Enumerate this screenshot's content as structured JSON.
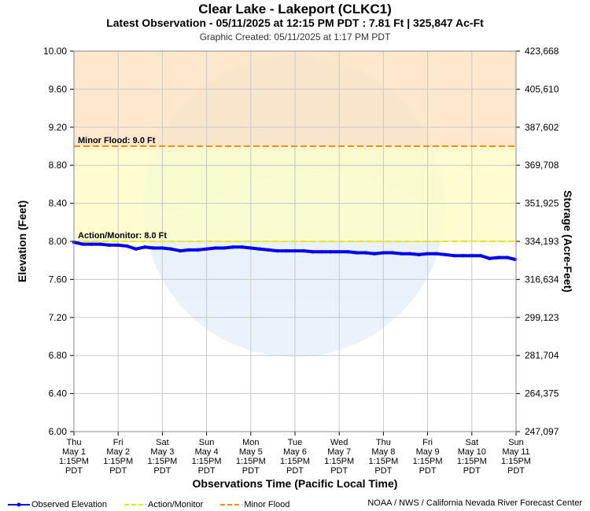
{
  "chart_data": {
    "type": "line",
    "title": "Clear Lake - Lakeport (CLKC1)",
    "subtitle": "Latest Observation - 05/11/2025 at 12:15 PM PDT : 7.81 Ft | 325,847 Ac-Ft",
    "created": "Graphic Created: 05/11/2025 at 1:17 PM PDT",
    "xlabel": "Observations Time (Pacific Local Time)",
    "ylabel": "Elevation (Feet)",
    "y2label": "Storage (Acre-Feet)",
    "ylim": [
      6.0,
      10.0
    ],
    "xlim": [
      0,
      10
    ],
    "y_ticks": [
      "6.00",
      "6.40",
      "6.80",
      "7.20",
      "7.60",
      "8.00",
      "8.40",
      "8.80",
      "9.20",
      "9.60",
      "10.00"
    ],
    "y2_ticks": [
      "247,097",
      "264,375",
      "281,704",
      "299,123",
      "316,634",
      "334,193",
      "351,925",
      "369,708",
      "387,602",
      "405,610",
      "423,668"
    ],
    "x_ticks": [
      [
        "Thu",
        "May 1",
        "1:15PM",
        "PDT"
      ],
      [
        "Fri",
        "May 2",
        "1:15PM",
        "PDT"
      ],
      [
        "Sat",
        "May 3",
        "1:15PM",
        "PDT"
      ],
      [
        "Sun",
        "May 4",
        "1:15PM",
        "PDT"
      ],
      [
        "Mon",
        "May 5",
        "1:15PM",
        "PDT"
      ],
      [
        "Tue",
        "May 6",
        "1:15PM",
        "PDT"
      ],
      [
        "Wed",
        "May 7",
        "1:15PM",
        "PDT"
      ],
      [
        "Thu",
        "May 8",
        "1:15PM",
        "PDT"
      ],
      [
        "Fri",
        "May 9",
        "1:15PM",
        "PDT"
      ],
      [
        "Sat",
        "May 10",
        "1:15PM",
        "PDT"
      ],
      [
        "Sun",
        "May 11",
        "1:15PM",
        "PDT"
      ]
    ],
    "thresholds": [
      {
        "label": "Minor Flood: 9.0 Ft",
        "value": 9.0,
        "color": "#ff8c00"
      },
      {
        "label": "Action/Monitor: 8.0 Ft",
        "value": 8.0,
        "color": "#e8e800"
      }
    ],
    "series": [
      {
        "name": "Observed Elevation",
        "color": "#0000ee",
        "x": [
          0,
          0.2,
          0.4,
          0.6,
          0.8,
          1.0,
          1.2,
          1.4,
          1.6,
          1.8,
          2.0,
          2.2,
          2.4,
          2.6,
          2.8,
          3.0,
          3.2,
          3.4,
          3.6,
          3.8,
          4.0,
          4.2,
          4.4,
          4.6,
          4.8,
          5.0,
          5.2,
          5.4,
          5.6,
          5.8,
          6.0,
          6.2,
          6.4,
          6.6,
          6.8,
          7.0,
          7.2,
          7.4,
          7.6,
          7.8,
          8.0,
          8.2,
          8.4,
          8.6,
          8.8,
          9.0,
          9.2,
          9.4,
          9.6,
          9.8,
          9.98
        ],
        "values": [
          7.99,
          7.97,
          7.97,
          7.97,
          7.96,
          7.96,
          7.95,
          7.92,
          7.94,
          7.93,
          7.93,
          7.92,
          7.9,
          7.91,
          7.91,
          7.92,
          7.93,
          7.93,
          7.94,
          7.94,
          7.93,
          7.92,
          7.91,
          7.9,
          7.9,
          7.9,
          7.9,
          7.89,
          7.89,
          7.89,
          7.89,
          7.89,
          7.88,
          7.88,
          7.87,
          7.88,
          7.88,
          7.87,
          7.87,
          7.86,
          7.87,
          7.87,
          7.86,
          7.85,
          7.85,
          7.85,
          7.85,
          7.82,
          7.83,
          7.83,
          7.81
        ]
      }
    ],
    "legend": [
      {
        "label": "Observed Elevation",
        "color": "#0000ee",
        "style": "marker"
      },
      {
        "label": "Action/Monitor",
        "color": "#e8e800",
        "style": "dashed"
      },
      {
        "label": "Minor Flood",
        "color": "#ff8c00",
        "style": "dashed"
      }
    ],
    "credit": "NOAA / NWS / California Nevada River Forecast Center",
    "bands": [
      {
        "from": 9.0,
        "to": 10.0,
        "color": "#fde4c4"
      },
      {
        "from": 8.0,
        "to": 9.0,
        "color": "#fdfdc8"
      }
    ]
  }
}
